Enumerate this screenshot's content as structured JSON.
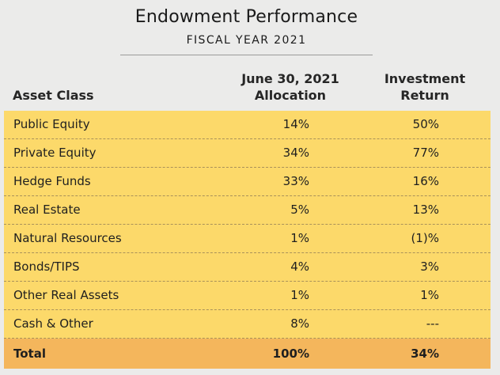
{
  "chart_data": {
    "type": "table",
    "title": "Endowment Performance",
    "subtitle": "FISCAL YEAR 2021",
    "columns": [
      "Asset Class",
      "June 30, 2021 Allocation",
      "Investment Return"
    ],
    "header": {
      "asset_class": "Asset Class",
      "allocation_line1": "June 30, 2021",
      "allocation_line2": "Allocation",
      "return_line1": "Investment",
      "return_line2": "Return"
    },
    "rows": [
      {
        "asset_class": "Public Equity",
        "allocation": "14%",
        "return": "50%"
      },
      {
        "asset_class": "Private Equity",
        "allocation": "34%",
        "return": "77%"
      },
      {
        "asset_class": "Hedge Funds",
        "allocation": "33%",
        "return": "16%"
      },
      {
        "asset_class": "Real Estate",
        "allocation": "5%",
        "return": "13%"
      },
      {
        "asset_class": "Natural Resources",
        "allocation": "1%",
        "return": "(1)%"
      },
      {
        "asset_class": "Bonds/TIPS",
        "allocation": "4%",
        "return": "3%"
      },
      {
        "asset_class": "Other Real Assets",
        "allocation": "1%",
        "return": "1%"
      },
      {
        "asset_class": "Cash & Other",
        "allocation": "8%",
        "return": "---"
      }
    ],
    "total": {
      "asset_class": "Total",
      "allocation": "100%",
      "return": "34%"
    },
    "colors": {
      "background": "#ebebea",
      "row_fill": "#fcd96a",
      "total_fill": "#f4b65c"
    }
  }
}
